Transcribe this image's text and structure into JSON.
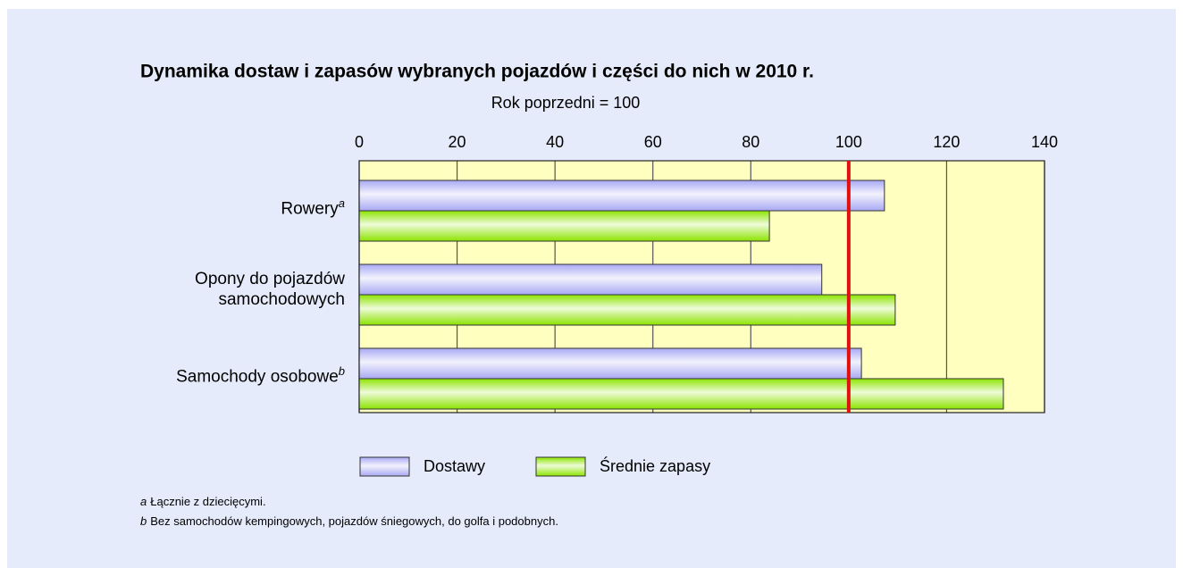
{
  "chart_data": {
    "type": "hbar",
    "title": "Dynamika dostaw i zapasów wybranych pojazdów i części do nich w 2010 r.",
    "subtitle": "Rok poprzedni = 100",
    "categories": [
      "Rowery",
      "Opony do pojazdów samochodowych",
      "Samochody osobowe"
    ],
    "category_superscripts": [
      "a",
      null,
      "b"
    ],
    "series": [
      {
        "name": "Dostawy",
        "color": "#a8a8f4",
        "values": [
          107.3,
          94.5,
          102.6
        ]
      },
      {
        "name": "Średnie zapasy",
        "color": "#8ce400",
        "values": [
          83.8,
          109.5,
          131.6
        ]
      }
    ],
    "reference_value": 100,
    "reference_color": "#e01010",
    "xlim": [
      0,
      140
    ],
    "xticks": [
      0,
      20,
      40,
      60,
      80,
      100,
      120,
      140
    ],
    "grid": true,
    "plot_background": "#ffffc0",
    "footnotes": [
      {
        "marker": "a",
        "text": "Łącznie z dziecięcymi."
      },
      {
        "marker": "b",
        "text": "Bez samochodów kempingowych, pojazdów śniegowych, do golfa i podobnych."
      }
    ]
  }
}
